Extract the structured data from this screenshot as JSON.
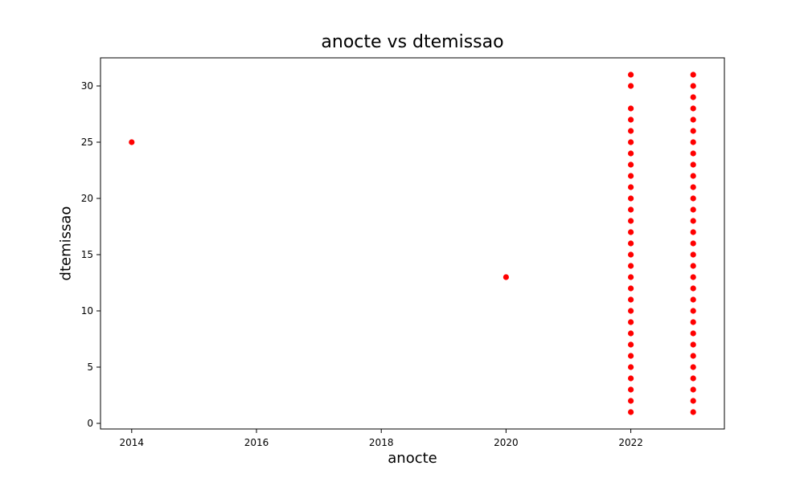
{
  "chart_data": {
    "type": "scatter",
    "title": "anocte vs dtemissao",
    "xlabel": "anocte",
    "ylabel": "dtemissao",
    "xlim": [
      2013.5,
      2023.5
    ],
    "ylim": [
      -0.5,
      32.5
    ],
    "xticks": [
      2014,
      2016,
      2018,
      2020,
      2022
    ],
    "yticks": [
      0,
      5,
      10,
      15,
      20,
      25,
      30
    ],
    "grid": false,
    "marker_color": "#ff0000",
    "series": [
      {
        "points": [
          [
            2014,
            25
          ],
          [
            2020,
            13
          ],
          [
            2022,
            1
          ],
          [
            2022,
            2
          ],
          [
            2022,
            3
          ],
          [
            2022,
            4
          ],
          [
            2022,
            5
          ],
          [
            2022,
            6
          ],
          [
            2022,
            7
          ],
          [
            2022,
            8
          ],
          [
            2022,
            9
          ],
          [
            2022,
            10
          ],
          [
            2022,
            11
          ],
          [
            2022,
            12
          ],
          [
            2022,
            13
          ],
          [
            2022,
            14
          ],
          [
            2022,
            15
          ],
          [
            2022,
            16
          ],
          [
            2022,
            17
          ],
          [
            2022,
            18
          ],
          [
            2022,
            19
          ],
          [
            2022,
            20
          ],
          [
            2022,
            21
          ],
          [
            2022,
            22
          ],
          [
            2022,
            23
          ],
          [
            2022,
            24
          ],
          [
            2022,
            25
          ],
          [
            2022,
            26
          ],
          [
            2022,
            27
          ],
          [
            2022,
            28
          ],
          [
            2022,
            30
          ],
          [
            2022,
            31
          ],
          [
            2023,
            1
          ],
          [
            2023,
            2
          ],
          [
            2023,
            3
          ],
          [
            2023,
            4
          ],
          [
            2023,
            5
          ],
          [
            2023,
            6
          ],
          [
            2023,
            7
          ],
          [
            2023,
            8
          ],
          [
            2023,
            9
          ],
          [
            2023,
            10
          ],
          [
            2023,
            11
          ],
          [
            2023,
            12
          ],
          [
            2023,
            13
          ],
          [
            2023,
            14
          ],
          [
            2023,
            15
          ],
          [
            2023,
            16
          ],
          [
            2023,
            17
          ],
          [
            2023,
            18
          ],
          [
            2023,
            19
          ],
          [
            2023,
            20
          ],
          [
            2023,
            21
          ],
          [
            2023,
            22
          ],
          [
            2023,
            23
          ],
          [
            2023,
            24
          ],
          [
            2023,
            25
          ],
          [
            2023,
            26
          ],
          [
            2023,
            27
          ],
          [
            2023,
            28
          ],
          [
            2023,
            29
          ],
          [
            2023,
            30
          ],
          [
            2023,
            31
          ]
        ]
      }
    ]
  }
}
